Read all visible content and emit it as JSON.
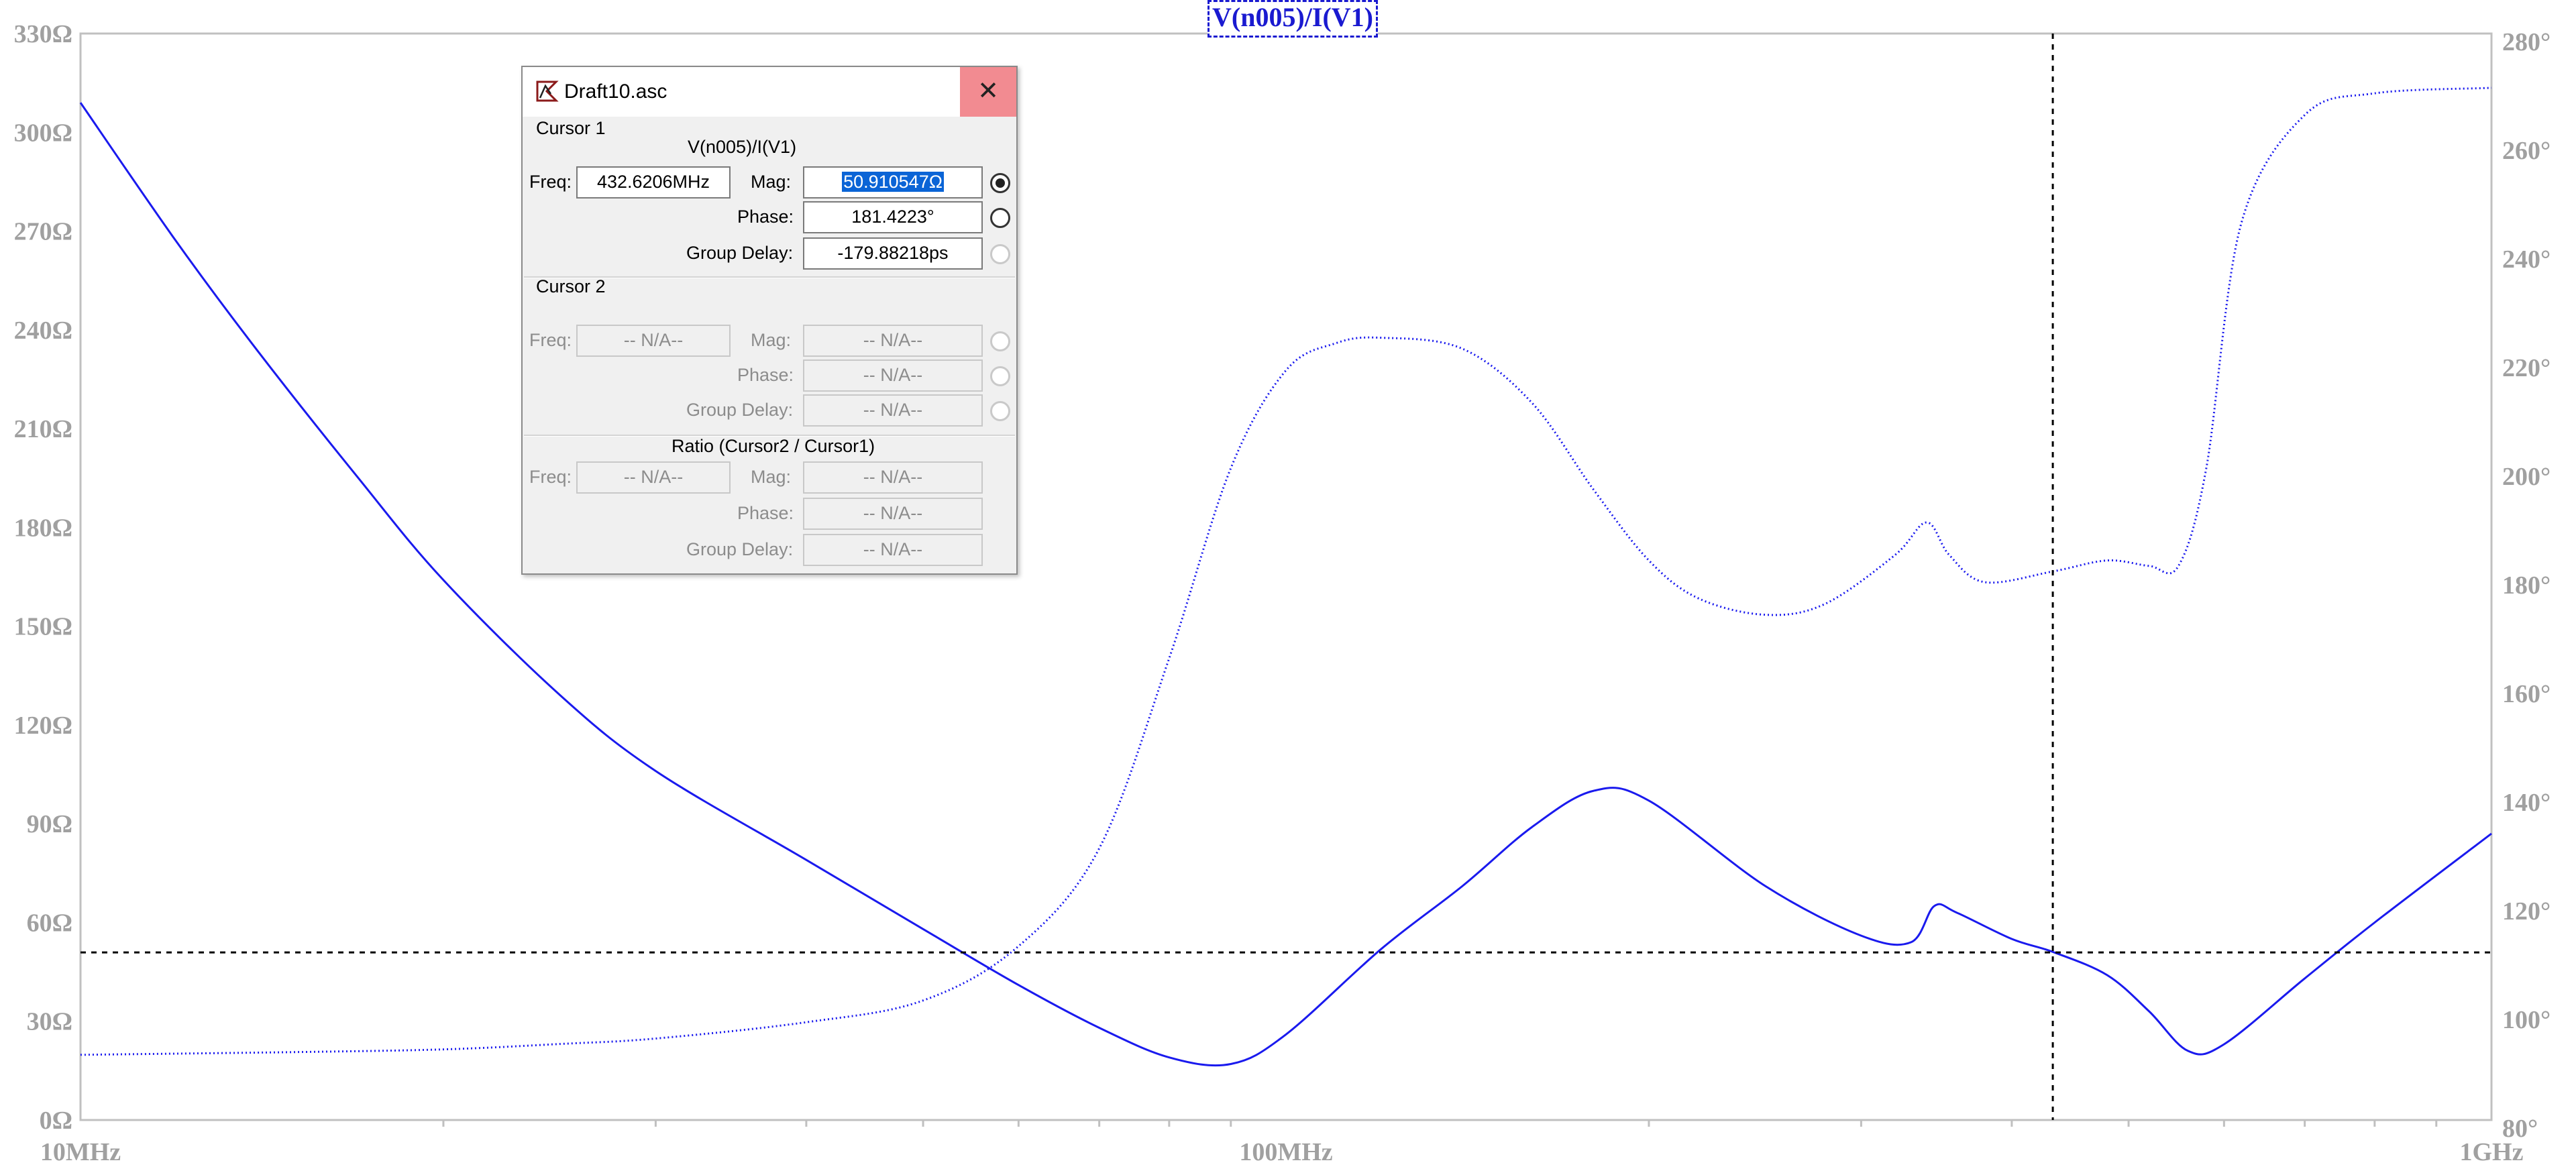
{
  "plot": {
    "title": "V(n005)/I(V1)",
    "left_axis_ticks": [
      "330Ω",
      "300Ω",
      "270Ω",
      "240Ω",
      "210Ω",
      "180Ω",
      "150Ω",
      "120Ω",
      "90Ω",
      "60Ω",
      "30Ω",
      "0Ω"
    ],
    "right_axis_ticks": [
      "280°",
      "260°",
      "240°",
      "220°",
      "200°",
      "180°",
      "160°",
      "140°",
      "120°",
      "100°",
      "80°"
    ],
    "x_axis_ticks": [
      "10MHz",
      "100MHz",
      "1GHz"
    ],
    "trace_color": "#1a1aee",
    "cursor_freq_mhz": 432.6206,
    "cursor_mag_ohm": 50.910547
  },
  "dialog": {
    "title": "Draft10.asc",
    "close_glyph": "✕",
    "cursor1": {
      "group_label": "Cursor 1",
      "expression": "V(n005)/I(V1)",
      "freq_label": "Freq:",
      "freq_value": "432.6206MHz",
      "mag_label": "Mag:",
      "mag_value": "50.910547Ω",
      "phase_label": "Phase:",
      "phase_value": "181.4223°",
      "gd_label": "Group Delay:",
      "gd_value": "-179.88218ps"
    },
    "cursor2": {
      "group_label": "Cursor 2",
      "freq_label": "Freq:",
      "freq_value": "-- N/A--",
      "mag_label": "Mag:",
      "mag_value": "-- N/A--",
      "phase_label": "Phase:",
      "phase_value": "-- N/A--",
      "gd_label": "Group Delay:",
      "gd_value": "-- N/A--"
    },
    "ratio": {
      "group_label": "Ratio (Cursor2 / Cursor1)",
      "freq_label": "Freq:",
      "freq_value": "-- N/A--",
      "mag_label": "Mag:",
      "mag_value": "-- N/A--",
      "phase_label": "Phase:",
      "phase_value": "-- N/A--",
      "gd_label": "Group Delay:",
      "gd_value": "-- N/A--"
    }
  },
  "chart_data": {
    "type": "line",
    "xscale": "log",
    "xlim": [
      "10MHz",
      "1GHz"
    ],
    "series": [
      {
        "axis": "left",
        "ylim": [
          0,
          330
        ],
        "x_mhz": [
          10,
          12,
          14,
          17,
          20,
          25,
          30,
          40,
          50,
          60,
          70,
          80,
          90,
          100,
          120,
          140,
          160,
          180,
          200,
          250,
          300,
          330,
          345,
          360,
          400,
          433,
          480,
          520,
          560,
          600,
          700,
          800,
          1000
        ],
        "y": [
          309,
          267,
          234,
          195,
          164,
          129,
          106,
          79,
          58,
          41,
          28,
          19,
          17,
          26,
          52,
          71,
          89,
          100,
          97,
          71,
          56,
          54,
          65,
          63,
          55,
          51,
          44,
          33,
          21,
          23,
          43,
          60,
          87
        ]
      },
      {
        "axis": "right",
        "ylim": [
          80,
          280
        ],
        "x_mhz": [
          10,
          15,
          20,
          25,
          30,
          40,
          50,
          60,
          70,
          80,
          90,
          100,
          110,
          120,
          140,
          160,
          180,
          200,
          220,
          250,
          280,
          320,
          340,
          355,
          380,
          433,
          480,
          520,
          550,
          580,
          620,
          700,
          800,
          1000
        ],
        "y": [
          92,
          92.5,
          93,
          94,
          95,
          98,
          102,
          112,
          130,
          165,
          200,
          218,
          223,
          224,
          222,
          212,
          196,
          183,
          176,
          173,
          175,
          184,
          190,
          184,
          179,
          181,
          183,
          182,
          182,
          200,
          245,
          265,
          269,
          270
        ]
      }
    ]
  }
}
